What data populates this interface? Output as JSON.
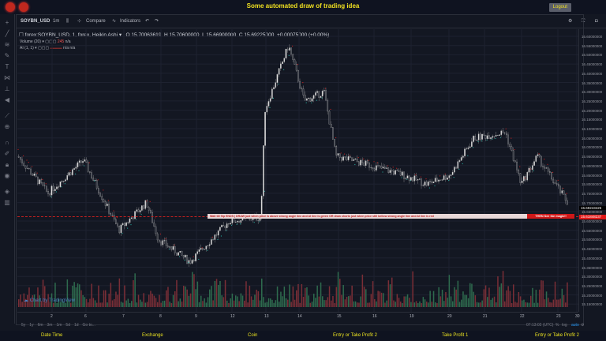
{
  "header": {
    "title": "Some automated draw of trading idea",
    "logout_label": "Logout"
  },
  "toolbar": {
    "symbol": "SOYBN_USD",
    "interval": "1m",
    "compare": "Compare",
    "indicators": "Indicators"
  },
  "legend": {
    "symbol_line": "forex:SOYBN_USD, 1, forex, Heikin Ashi",
    "open": "O 15.70063619",
    "high": "H 15.70600000",
    "low": "L 15.66900000",
    "close": "C 15.69225000",
    "change": "+0.00075000 (+0.00%)",
    "volume": "Volume (20)",
    "volume_value": "245",
    "volume_na": "n/a",
    "ai": "AI (1, 1)",
    "ai_na": "n/a  n/a"
  },
  "price_axis": [
    "16.60000000",
    "16.55000000",
    "16.50000000",
    "16.45000000",
    "16.40000000",
    "16.35000000",
    "16.30000000",
    "16.25000000",
    "16.20000000",
    "16.15000000",
    "16.10000000",
    "16.05000000",
    "16.00000000",
    "15.95000000",
    "15.90000000",
    "15.85000000",
    "15.80000000",
    "15.75000000",
    "15.70000000",
    "15.65000000",
    "15.60000000",
    "15.55000000",
    "15.50000000",
    "15.45000000",
    "15.40000000",
    "15.35000000",
    "15.30000000",
    "15.25000000",
    "15.20000000",
    "15.15000000"
  ],
  "last_price": "15.69243425",
  "line_price": "15.61848237",
  "annotation": {
    "text": "Wait till flip ENDS  |  DRAW just when price is above strong angle line and AI line is green      OR      draw shorts just when price still bellow strong angle line and AI line is red",
    "magic": "THEN See the magic!!"
  },
  "time_axis": [
    "2",
    "6",
    "7",
    "8",
    "9",
    "12",
    "13",
    "14",
    "15",
    "16",
    "19",
    "20",
    "21",
    "22",
    "23",
    "30"
  ],
  "ranges": [
    "5y",
    "1y",
    "6m",
    "3m",
    "1m",
    "5d",
    "1d",
    "Go to..."
  ],
  "clock": "07:13:02 (UTC)",
  "scale": {
    "percent": "%",
    "log": "log",
    "auto": "auto"
  },
  "watermark": "Chart by TradingView",
  "footer": [
    "Date Time",
    "Exchange",
    "Coin",
    "Entry or Take Profit 2",
    "Take Profit 1",
    "Entry or Take Profit 2"
  ],
  "colors": {
    "up": "#26a69a",
    "down": "#ef5350",
    "title": "#f0e020"
  }
}
